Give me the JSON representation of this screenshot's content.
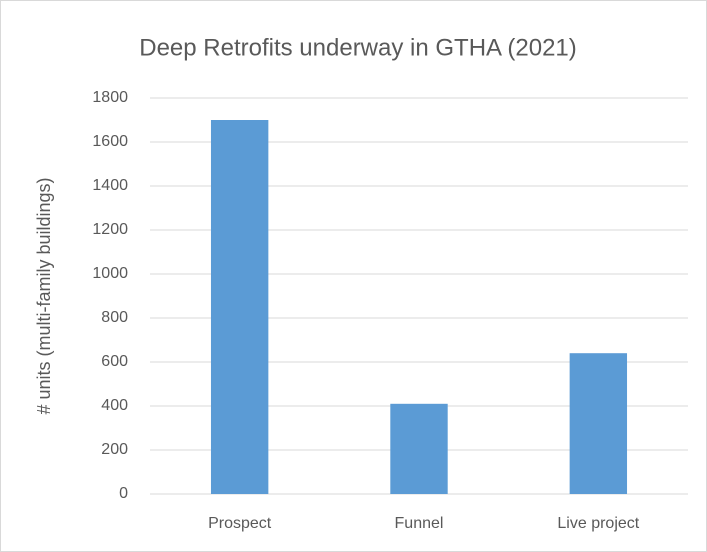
{
  "chart_data": {
    "type": "bar",
    "title": "Deep Retrofits underway in GTHA (2021)",
    "y_label": "# units (multi-family buildings)",
    "categories": [
      "Prospect",
      "Funnel",
      "Live project"
    ],
    "values": [
      1700,
      410,
      640
    ],
    "color": "#5b9bd5",
    "ylim": [
      0,
      1800
    ],
    "yticks": [
      0,
      200,
      400,
      600,
      800,
      1000,
      1200,
      1400,
      1600,
      1800
    ],
    "grid": true
  }
}
